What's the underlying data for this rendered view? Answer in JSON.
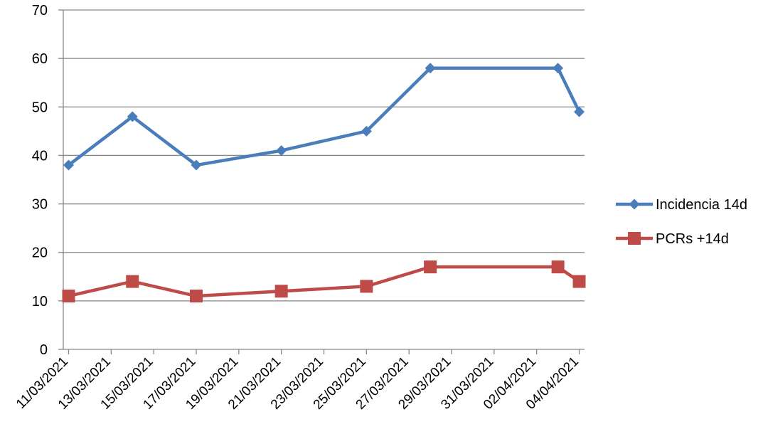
{
  "chart_data": {
    "type": "line",
    "x": [
      "11/03/2021",
      "14/03/2021",
      "17/03/2021",
      "21/03/2021",
      "25/03/2021",
      "28/03/2021",
      "03/04/2021",
      "04/04/2021"
    ],
    "series": [
      {
        "name": "Incidencia 14d",
        "color": "#4a7ebb",
        "marker": "diamond",
        "values": [
          38,
          48,
          38,
          41,
          45,
          58,
          58,
          49
        ]
      },
      {
        "name": "PCRs +14d",
        "color": "#be4b48",
        "marker": "square",
        "values": [
          11,
          14,
          11,
          12,
          13,
          17,
          17,
          14
        ]
      }
    ],
    "x_tick_labels": [
      "11/03/2021",
      "13/03/2021",
      "15/03/2021",
      "17/03/2021",
      "19/03/2021",
      "21/03/2021",
      "23/03/2021",
      "25/03/2021",
      "27/03/2021",
      "29/03/2021",
      "31/03/2021",
      "02/04/2021",
      "04/04/2021"
    ],
    "y_ticks": [
      "0",
      "10",
      "20",
      "30",
      "40",
      "50",
      "60",
      "70"
    ],
    "ylim": [
      0,
      70
    ],
    "xlim": [
      "11/03/2021",
      "04/04/2021"
    ],
    "grid": "horizontal",
    "legend_position": "right",
    "title": "",
    "xlabel": "",
    "ylabel": ""
  }
}
